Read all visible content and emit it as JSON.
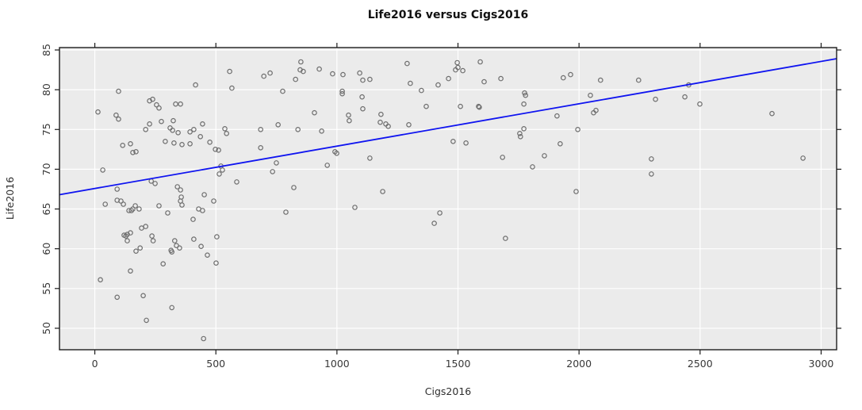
{
  "page": {
    "background": "#ffffff"
  },
  "chart_data": {
    "type": "scatter",
    "title": "Life2016 versus Cigs2016",
    "xlabel": "Cigs2016",
    "ylabel": "Life2016",
    "xlim": [
      -146,
      3064
    ],
    "ylim": [
      47.3,
      85.3
    ],
    "x_ticks": [
      0,
      500,
      1000,
      1500,
      2000,
      2500,
      3000
    ],
    "y_ticks": [
      50,
      55,
      60,
      65,
      70,
      75,
      80,
      85
    ],
    "grid": true,
    "legend": "none",
    "colors": {
      "panel_bg": "#ebebeb",
      "grid": "#ffffff",
      "point_stroke": "#6f6f6f",
      "regression_line": "#0f14f0",
      "border": "#1c1c1c",
      "tick": "#1c1c1c"
    },
    "marker": {
      "shape": "open-circle",
      "radius": 2.7,
      "stroke_width": 1.2
    },
    "regression_line": {
      "x1": -146,
      "y1": 66.8,
      "x2": 3064,
      "y2": 83.9
    },
    "points": [
      [
        557,
        82.3
      ],
      [
        416,
        80.6
      ],
      [
        566,
        80.2
      ],
      [
        98,
        79.8
      ],
      [
        226,
        78.6
      ],
      [
        239,
        78.8
      ],
      [
        255,
        78.1
      ],
      [
        265,
        77.7
      ],
      [
        334,
        78.2
      ],
      [
        354,
        78.2
      ],
      [
        13,
        77.2
      ],
      [
        88,
        76.8
      ],
      [
        98,
        76.3
      ],
      [
        275,
        76.0
      ],
      [
        210,
        75.0
      ],
      [
        226,
        75.7
      ],
      [
        324,
        76.1
      ],
      [
        311,
        75.2
      ],
      [
        321,
        74.9
      ],
      [
        344,
        74.6
      ],
      [
        393,
        74.7
      ],
      [
        409,
        75.0
      ],
      [
        445,
        75.7
      ],
      [
        436,
        74.1
      ],
      [
        475,
        73.4
      ],
      [
        291,
        73.5
      ],
      [
        327,
        73.3
      ],
      [
        360,
        73.1
      ],
      [
        393,
        73.2
      ],
      [
        115,
        73.0
      ],
      [
        147,
        73.2
      ],
      [
        157,
        72.1
      ],
      [
        170,
        72.2
      ],
      [
        537,
        75.1
      ],
      [
        544,
        74.5
      ],
      [
        498,
        72.5
      ],
      [
        511,
        72.4
      ],
      [
        521,
        70.4
      ],
      [
        527,
        69.9
      ],
      [
        514,
        69.4
      ],
      [
        33,
        69.9
      ],
      [
        233,
        68.5
      ],
      [
        249,
        68.2
      ],
      [
        341,
        67.8
      ],
      [
        354,
        67.4
      ],
      [
        586,
        68.4
      ],
      [
        452,
        66.8
      ],
      [
        92,
        67.5
      ],
      [
        851,
        83.5
      ],
      [
        1290,
        83.3
      ],
      [
        698,
        81.7
      ],
      [
        724,
        82.1
      ],
      [
        848,
        82.5
      ],
      [
        861,
        82.3
      ],
      [
        927,
        82.6
      ],
      [
        829,
        81.3
      ],
      [
        982,
        82.0
      ],
      [
        1025,
        81.9
      ],
      [
        1094,
        82.1
      ],
      [
        1107,
        81.2
      ],
      [
        1136,
        81.3
      ],
      [
        776,
        79.8
      ],
      [
        1022,
        79.8
      ],
      [
        1022,
        79.5
      ],
      [
        1104,
        79.1
      ],
      [
        1303,
        80.8
      ],
      [
        1349,
        79.9
      ],
      [
        1418,
        80.6
      ],
      [
        1461,
        81.4
      ],
      [
        1369,
        77.9
      ],
      [
        1107,
        77.6
      ],
      [
        907,
        77.1
      ],
      [
        1048,
        76.8
      ],
      [
        1051,
        76.1
      ],
      [
        1182,
        76.9
      ],
      [
        1179,
        75.9
      ],
      [
        1202,
        75.7
      ],
      [
        1212,
        75.4
      ],
      [
        1297,
        75.6
      ],
      [
        757,
        75.6
      ],
      [
        685,
        75.0
      ],
      [
        839,
        75.0
      ],
      [
        937,
        74.8
      ],
      [
        685,
        72.7
      ],
      [
        992,
        72.2
      ],
      [
        999,
        72.0
      ],
      [
        1136,
        71.4
      ],
      [
        960,
        70.5
      ],
      [
        750,
        70.8
      ],
      [
        734,
        69.7
      ],
      [
        822,
        67.7
      ],
      [
        1189,
        67.2
      ],
      [
        1497,
        83.4
      ],
      [
        1500,
        82.8
      ],
      [
        1490,
        82.5
      ],
      [
        1520,
        82.4
      ],
      [
        1592,
        83.5
      ],
      [
        1608,
        81.0
      ],
      [
        1677,
        81.4
      ],
      [
        1775,
        79.6
      ],
      [
        1779,
        79.3
      ],
      [
        1772,
        78.2
      ],
      [
        1935,
        81.5
      ],
      [
        1965,
        81.9
      ],
      [
        2089,
        81.2
      ],
      [
        2246,
        81.2
      ],
      [
        1510,
        77.9
      ],
      [
        1585,
        77.9
      ],
      [
        1588,
        77.8
      ],
      [
        2047,
        79.3
      ],
      [
        2060,
        77.1
      ],
      [
        2070,
        77.4
      ],
      [
        1909,
        76.7
      ],
      [
        1772,
        75.1
      ],
      [
        1755,
        74.5
      ],
      [
        1758,
        74.1
      ],
      [
        1995,
        75.0
      ],
      [
        1480,
        73.5
      ],
      [
        1533,
        73.3
      ],
      [
        1922,
        73.2
      ],
      [
        1684,
        71.5
      ],
      [
        1857,
        71.7
      ],
      [
        1808,
        70.3
      ],
      [
        2299,
        71.3
      ],
      [
        2299,
        69.4
      ],
      [
        1988,
        67.2
      ],
      [
        1696,
        61.3
      ],
      [
        2453,
        80.6
      ],
      [
        2316,
        78.8
      ],
      [
        2437,
        79.1
      ],
      [
        2499,
        78.2
      ],
      [
        2797,
        77.0
      ],
      [
        2925,
        71.4
      ],
      [
        43,
        65.6
      ],
      [
        92,
        66.1
      ],
      [
        108,
        66.0
      ],
      [
        118,
        65.6
      ],
      [
        141,
        64.8
      ],
      [
        151,
        64.8
      ],
      [
        157,
        65.0
      ],
      [
        167,
        65.4
      ],
      [
        183,
        65.0
      ],
      [
        265,
        65.4
      ],
      [
        301,
        64.5
      ],
      [
        357,
        66.5
      ],
      [
        354,
        66.0
      ],
      [
        360,
        65.5
      ],
      [
        491,
        66.0
      ],
      [
        406,
        63.7
      ],
      [
        429,
        65.0
      ],
      [
        445,
        64.8
      ],
      [
        193,
        62.6
      ],
      [
        210,
        62.8
      ],
      [
        121,
        61.7
      ],
      [
        128,
        61.6
      ],
      [
        134,
        61.8
      ],
      [
        147,
        62.0
      ],
      [
        134,
        61.0
      ],
      [
        170,
        59.7
      ],
      [
        187,
        60.1
      ],
      [
        236,
        61.6
      ],
      [
        241,
        61.0
      ],
      [
        330,
        61.0
      ],
      [
        315,
        59.8
      ],
      [
        337,
        60.4
      ],
      [
        350,
        60.1
      ],
      [
        318,
        59.6
      ],
      [
        409,
        61.2
      ],
      [
        439,
        60.3
      ],
      [
        465,
        59.2
      ],
      [
        504,
        61.5
      ],
      [
        501,
        58.2
      ],
      [
        282,
        58.1
      ],
      [
        147,
        57.2
      ],
      [
        23,
        56.1
      ],
      [
        92,
        53.9
      ],
      [
        200,
        54.1
      ],
      [
        318,
        52.6
      ],
      [
        213,
        51.0
      ],
      [
        449,
        48.7
      ],
      [
        789,
        64.6
      ],
      [
        1074,
        65.2
      ],
      [
        1425,
        64.5
      ],
      [
        1402,
        63.2
      ]
    ]
  }
}
